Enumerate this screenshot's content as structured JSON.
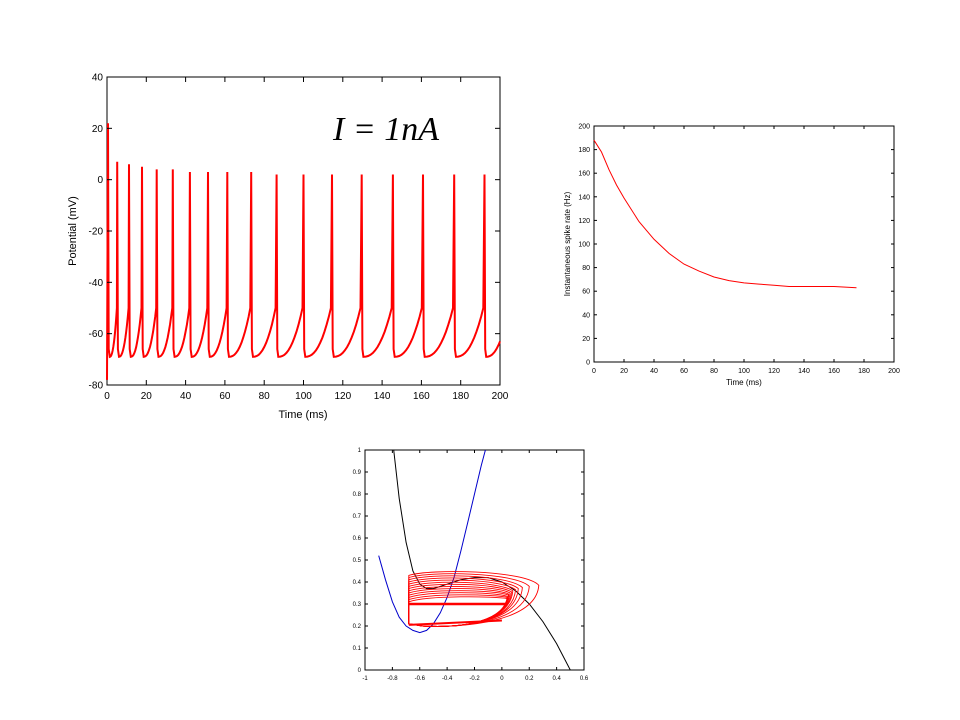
{
  "chart_data": [
    {
      "type": "line",
      "xlabel": "Time (ms)",
      "ylabel": "Potential (mV)",
      "annotation": "I = 1nA",
      "xlim": [
        0,
        200
      ],
      "ylim": [
        -80,
        40
      ],
      "xticks": [
        0,
        20,
        40,
        60,
        80,
        100,
        120,
        140,
        160,
        180,
        200
      ],
      "yticks": [
        -80,
        -60,
        -40,
        -20,
        0,
        20,
        40
      ],
      "series": [
        {
          "color": "#ff0000",
          "spike_times": [
            0.5,
            5.2,
            11.2,
            17.8,
            25.3,
            33.5,
            42.2,
            51.4,
            61.2,
            73.4,
            86.3,
            100.0,
            114.5,
            129.6,
            145.5,
            160.8,
            176.7,
            192.1
          ],
          "spike_peaks": [
            22,
            7,
            6,
            5,
            4,
            4,
            3,
            3,
            3,
            3,
            2,
            2,
            2,
            2,
            2,
            2,
            2,
            2
          ],
          "trough": -69,
          "end_value": -63
        }
      ]
    },
    {
      "type": "line",
      "xlabel": "Time (ms)",
      "ylabel": "Instantaneous spike rate (Hz)",
      "xlim": [
        0,
        200
      ],
      "ylim": [
        0,
        200
      ],
      "xticks": [
        0,
        20,
        40,
        60,
        80,
        100,
        120,
        140,
        160,
        180,
        200
      ],
      "yticks": [
        0,
        20,
        40,
        60,
        80,
        100,
        120,
        140,
        160,
        180,
        200
      ],
      "series": [
        {
          "color": "#ff0000",
          "x": [
            0,
            5,
            10,
            15,
            20,
            30,
            40,
            50,
            60,
            70,
            80,
            90,
            100,
            110,
            120,
            130,
            140,
            150,
            160,
            175
          ],
          "y": [
            188,
            178,
            163,
            150,
            139,
            119,
            104,
            92,
            83,
            77,
            72,
            69,
            67,
            66,
            65,
            64,
            64,
            64,
            64,
            63
          ]
        }
      ]
    },
    {
      "type": "line",
      "xlabel": "",
      "ylabel": "",
      "xlim": [
        -1,
        0.6
      ],
      "ylim": [
        0,
        1
      ],
      "xticks": [
        -1,
        -0.8,
        -0.6,
        -0.4,
        -0.2,
        0,
        0.2,
        0.4,
        0.6
      ],
      "yticks": [
        0,
        0.1,
        0.2,
        0.3,
        0.4,
        0.5,
        0.6,
        0.7,
        0.8,
        0.9,
        1
      ],
      "series": [
        {
          "color": "#000000",
          "x": [
            -0.79,
            -0.75,
            -0.7,
            -0.65,
            -0.6,
            -0.55,
            -0.5,
            -0.45,
            -0.4,
            -0.3,
            -0.2,
            -0.1,
            0,
            0.1,
            0.2,
            0.3,
            0.4,
            0.5
          ],
          "y": [
            1.0,
            0.78,
            0.58,
            0.45,
            0.39,
            0.37,
            0.37,
            0.38,
            0.39,
            0.41,
            0.42,
            0.42,
            0.4,
            0.36,
            0.3,
            0.22,
            0.12,
            0.0
          ]
        },
        {
          "color": "#0000cc",
          "x": [
            -0.9,
            -0.85,
            -0.8,
            -0.75,
            -0.7,
            -0.65,
            -0.6,
            -0.55,
            -0.5,
            -0.45,
            -0.4,
            -0.35,
            -0.3,
            -0.25,
            -0.2,
            -0.15,
            -0.12
          ],
          "y": [
            0.52,
            0.41,
            0.31,
            0.24,
            0.2,
            0.18,
            0.17,
            0.18,
            0.21,
            0.26,
            0.33,
            0.42,
            0.54,
            0.67,
            0.8,
            0.93,
            1.0
          ]
        },
        {
          "color": "#ff0000",
          "cycles_x_left": -0.68,
          "cycles_x_right": [
            0.27,
            0.2,
            0.15,
            0.12,
            0.1,
            0.08,
            0.07,
            0.06,
            0.05,
            0.05,
            0.04,
            0.04,
            0.04
          ],
          "cycles_y_top": [
            0.45,
            0.44,
            0.43,
            0.42,
            0.41,
            0.4,
            0.39,
            0.38,
            0.37,
            0.36,
            0.35,
            0.34,
            0.33
          ],
          "cycles_y_bottom": 0.2
        }
      ]
    }
  ]
}
